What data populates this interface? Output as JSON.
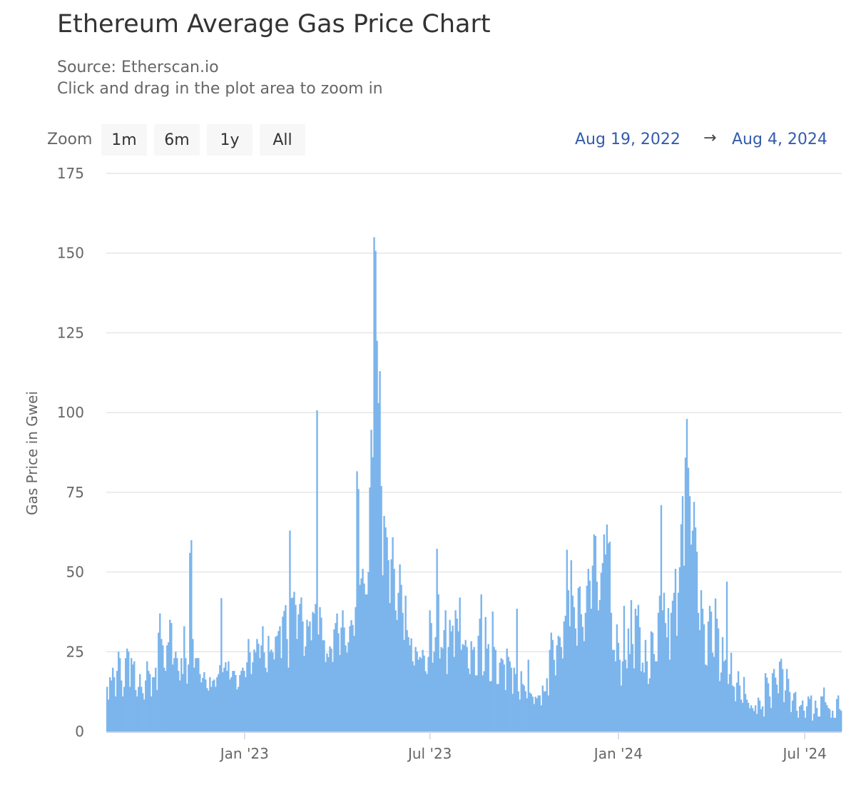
{
  "title": "Ethereum Average Gas Price Chart",
  "subtitle_lines": [
    "Source: Etherscan.io",
    "Click and drag in the plot area to zoom in"
  ],
  "range_selector": {
    "label": "Zoom",
    "buttons": [
      "1m",
      "6m",
      "1y",
      "All"
    ],
    "from": "Aug 19, 2022",
    "arrow": "→",
    "to": "Aug 4, 2024"
  },
  "chart_data": {
    "type": "bar",
    "title": "Ethereum Average Gas Price Chart",
    "ylabel": "Gas Price in Gwei",
    "xlabel": "",
    "x_start": "2022-08-19",
    "x_end": "2024-08-04",
    "ylim": [
      0,
      175
    ],
    "y_ticks": [
      "0",
      "25",
      "50",
      "75",
      "100",
      "125",
      "150",
      "175"
    ],
    "y_tick_values": [
      0,
      25,
      50,
      75,
      100,
      125,
      150,
      175
    ],
    "x_ticks": [
      {
        "label": "Jan '23",
        "date": "2023-01-01"
      },
      {
        "label": "Jul '23",
        "date": "2023-07-01"
      },
      {
        "label": "Jan '24",
        "date": "2024-01-01"
      },
      {
        "label": "Jul '24",
        "date": "2024-07-01"
      }
    ],
    "grid": true,
    "legend": "none",
    "bar_color": "#7cb5ec",
    "values": [
      14,
      10,
      17,
      16,
      20,
      17,
      11,
      19,
      25,
      23,
      16,
      11,
      14,
      23,
      26,
      25,
      14,
      23,
      21,
      22,
      13,
      11,
      14,
      18,
      14,
      12,
      10,
      16,
      22,
      19,
      18,
      11,
      17,
      17,
      20,
      13,
      31,
      37,
      29,
      27,
      20,
      19,
      27,
      28,
      35,
      34,
      21,
      23,
      25,
      23,
      19,
      16,
      23,
      18,
      33,
      23,
      15,
      21,
      56,
      60,
      29,
      20,
      23,
      23,
      23,
      18,
      15.4,
      16.8,
      18.6,
      16.3,
      13.6,
      12.8,
      17,
      14,
      15.9,
      16.3,
      14,
      17,
      18,
      20.8,
      41.8,
      18.6,
      20,
      21.7,
      19,
      22,
      16.3,
      17,
      19,
      19,
      17.7,
      13.2,
      14,
      17.7,
      19,
      20,
      19,
      17,
      21.7,
      29,
      24.8,
      18,
      21.7,
      25.7,
      24.8,
      29,
      27.5,
      23,
      27,
      33,
      24.8,
      20,
      18.6,
      30,
      25,
      25.7,
      24.8,
      22.6,
      29.7,
      30,
      31.5,
      33,
      23,
      36,
      37.8,
      39.6,
      29,
      20,
      63,
      41.8,
      42,
      43.8,
      39.7,
      29,
      36.7,
      40,
      42,
      34.5,
      23.7,
      26.7,
      35,
      33,
      34.5,
      28.6,
      37.5,
      37,
      40,
      100.7,
      30.4,
      39,
      35.7,
      28.6,
      28.6,
      21.8,
      24.5,
      23.3,
      26.7,
      26,
      21.8,
      32,
      34,
      37,
      30.8,
      24,
      32.6,
      38,
      32.6,
      27,
      24.7,
      28,
      33,
      34.9,
      33.4,
      30,
      39,
      81.6,
      76,
      46,
      48,
      51,
      46.4,
      43,
      43,
      50,
      76.5,
      94.6,
      86,
      155,
      150.7,
      122.5,
      103,
      113,
      77,
      49,
      67.6,
      64,
      60.9,
      53.7,
      40.3,
      54,
      60.9,
      51,
      38,
      35,
      43.5,
      52.4,
      46,
      37.2,
      28.7,
      42.6,
      31.8,
      29.6,
      27,
      29.2,
      22,
      20.7,
      26.5,
      25,
      22.5,
      23.4,
      22.9,
      25.6,
      23.8,
      18.9,
      18,
      23.4,
      38,
      34,
      21.6,
      25,
      29.6,
      57.3,
      43,
      22.9,
      26.5,
      26,
      31.8,
      38,
      18,
      26.5,
      35,
      31.4,
      33.2,
      23.4,
      38,
      35.4,
      31.4,
      42,
      25.6,
      27.4,
      27,
      28.7,
      26.5,
      19.8,
      18,
      28.3,
      25.6,
      26.5,
      17.6,
      17.6,
      30,
      35.4,
      43,
      17.6,
      18.9,
      35.9,
      26,
      27.4,
      15.8,
      15.8,
      37.6,
      26.5,
      25.6,
      14.9,
      14.9,
      21.6,
      23,
      22.5,
      21,
      13,
      26,
      23.4,
      22,
      20,
      11.8,
      20,
      18,
      38.5,
      12.6,
      10,
      18.9,
      14.9,
      14.4,
      12.6,
      10.4,
      22.5,
      12.2,
      11.8,
      10.9,
      8.6,
      10.9,
      10.4,
      11.3,
      11.3,
      8.2,
      14.4,
      12.6,
      12.6,
      16.7,
      11.3,
      25.6,
      31,
      28.7,
      22.5,
      17.6,
      27,
      30,
      29.5,
      26.5,
      22.9,
      34.5,
      36.3,
      57,
      44.3,
      33,
      53.7,
      42.6,
      39,
      32.3,
      26.9,
      45,
      45.5,
      36.8,
      32.8,
      28.3,
      37.2,
      45.7,
      51,
      47.3,
      38.5,
      52,
      61.8,
      61.3,
      47,
      38,
      41.2,
      49.7,
      52.8,
      61.8,
      55.5,
      64.9,
      59,
      59.5,
      37.2,
      25.6,
      25.6,
      22,
      33.6,
      27.8,
      22.5,
      14.4,
      22,
      39.4,
      22.5,
      19.8,
      32.3,
      24.3,
      41.2,
      27.4,
      19.8,
      38.5,
      36.3,
      39.7,
      32.7,
      18.9,
      21.6,
      18.5,
      28.7,
      22,
      14.9,
      16.7,
      31.4,
      31,
      24.3,
      22,
      22,
      37.2,
      42.6,
      71,
      38,
      43.5,
      34,
      29.5,
      38.7,
      22.5,
      37.2,
      41,
      43.5,
      51,
      30,
      43.5,
      51.5,
      65,
      73.8,
      52,
      85.9,
      98,
      82.7,
      73.8,
      58.6,
      63,
      72,
      64,
      56.4,
      37.2,
      31.8,
      44.3,
      38.5,
      33.6,
      21,
      20.7,
      34.5,
      39.4,
      37.6,
      24.7,
      23.4,
      41.7,
      35.4,
      32.3,
      15.8,
      18.5,
      29.6,
      22,
      22.5,
      47,
      14.9,
      18,
      24.7,
      14.4,
      14,
      9.5,
      15.3,
      18.9,
      14.4,
      10,
      9,
      17.1,
      11.8,
      10,
      9,
      7.3,
      8.2,
      7.3,
      6.4,
      8.2,
      5.5,
      10.6,
      9.7,
      7,
      7.9,
      4.7,
      18.3,
      16.9,
      15.1,
      11,
      7.4,
      18.3,
      19.6,
      16.9,
      14.7,
      12,
      21.9,
      22.8,
      19.6,
      9.2,
      12.9,
      19.6,
      16.5,
      12.4,
      6.1,
      9.7,
      12,
      12.4,
      6.5,
      4.3,
      7.9,
      8.3,
      9.7,
      6.5,
      4.3,
      7.9,
      11,
      10.2,
      11.3,
      3.4,
      5.6,
      9.7,
      7.4,
      4.7,
      4.7,
      11,
      11,
      13.8,
      9.2,
      8.3,
      7.4,
      7,
      4.3,
      6.5,
      4.3,
      4.3,
      10.2,
      11.3,
      7,
      6.5
    ]
  }
}
